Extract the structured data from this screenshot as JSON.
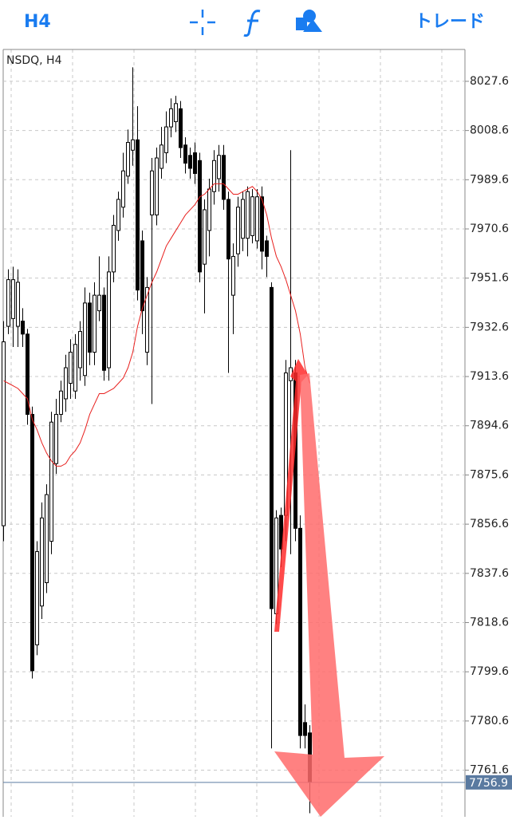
{
  "toolbar": {
    "timeframe": "H4",
    "trade": "トレード"
  },
  "chart_data": {
    "type": "candlestick",
    "title": "NSDQ, H4",
    "open": [
      7856,
      7933,
      7936,
      7933,
      7935,
      7930,
      7899,
      7810,
      7825,
      7834,
      7850,
      7880,
      7899,
      7905,
      7911,
      7908,
      7917,
      7914,
      7942,
      7923,
      7939,
      7945,
      7917,
      7954,
      7970,
      7979,
      7991,
      8001,
      8005,
      7966,
      7923,
      7976,
      7976,
      7994,
      8000,
      8010,
      8012,
      8017,
      8003,
      7999,
      8000,
      7997,
      7957,
      7970,
      7985,
      7990,
      7999,
      7982,
      7945,
      7961,
      7967,
      7967,
      7968,
      7966,
      7983,
      7966,
      7948,
      7822,
      7860,
      7860,
      7912,
      7915,
      7855,
      7780,
      7776
    ],
    "high": [
      7935,
      7955,
      7956,
      7955,
      7940,
      7932,
      7902,
      7850,
      7865,
      7872,
      7900,
      7905,
      7912,
      7922,
      7928,
      7930,
      7935,
      7948,
      7946,
      7950,
      7960,
      7948,
      7960,
      7976,
      7985,
      8000,
      8009,
      8033,
      8018,
      7970,
      7952,
      7998,
      8002,
      8010,
      8016,
      8021,
      8022,
      8020,
      8006,
      8002,
      8004,
      8000,
      7982,
      7990,
      8001,
      8003,
      8003,
      7985,
      7965,
      7983,
      7985,
      7987,
      7986,
      7986,
      7987,
      7968,
      7950,
      7862,
      7863,
      7920,
      8001,
      7920,
      7860,
      7787,
      7779
    ],
    "low": [
      7850,
      7930,
      7925,
      7925,
      7925,
      7895,
      7797,
      7806,
      7820,
      7830,
      7845,
      7876,
      7896,
      7900,
      7905,
      7905,
      7912,
      7910,
      7918,
      7918,
      7935,
      7912,
      7912,
      7950,
      7966,
      7975,
      7988,
      7995,
      7943,
      7930,
      7918,
      7903,
      7972,
      7990,
      7996,
      8006,
      8008,
      7998,
      7992,
      7990,
      7988,
      7950,
      7938,
      7960,
      7980,
      7985,
      7978,
      7915,
      7930,
      7956,
      7962,
      7960,
      7965,
      7963,
      7955,
      7952,
      7770,
      7818,
      7840,
      7850,
      7845,
      7850,
      7770,
      7770,
      7745
    ],
    "close": [
      7927,
      7951,
      7951,
      7950,
      7930,
      7899,
      7800,
      7846,
      7859,
      7868,
      7896,
      7899,
      7908,
      7917,
      7923,
      7926,
      7931,
      7942,
      7923,
      7945,
      7945,
      7916,
      7954,
      7972,
      7982,
      7993,
      8004,
      8005,
      7947,
      7939,
      7948,
      7993,
      7998,
      8003,
      8010,
      8017,
      8019,
      8002,
      7996,
      7994,
      7992,
      7954,
      7978,
      7986,
      7997,
      7999,
      7982,
      7959,
      7960,
      7979,
      7982,
      7985,
      7983,
      7983,
      7962,
      7960,
      7824,
      7859,
      7847,
      7915,
      7917,
      7855,
      7775,
      7775,
      7757
    ],
    "ma": [
      7912,
      7911,
      7910,
      7909,
      7907,
      7905,
      7897,
      7893,
      7888,
      7884,
      7881,
      7879,
      7879,
      7880,
      7883,
      7885,
      7888,
      7893,
      7899,
      7903,
      7907,
      7907,
      7908,
      7909,
      7911,
      7913,
      7917,
      7923,
      7933,
      7940,
      7945,
      7950,
      7954,
      7959,
      7964,
      7967,
      7970,
      7973,
      7976,
      7978,
      7980,
      7983,
      7984,
      7986,
      7988,
      7988,
      7988,
      7986,
      7984,
      7984,
      7985,
      7986,
      7987,
      7985,
      7982,
      7976,
      7967,
      7960,
      7956,
      7951,
      7945,
      7939,
      7930,
      7917,
      7911
    ],
    "ma_color": "#e8201e",
    "ylim": [
      7743.6,
      8039.9
    ],
    "yticks": [
      8027.6,
      8008.6,
      7989.6,
      7970.6,
      7951.6,
      7932.6,
      7913.6,
      7894.6,
      7875.6,
      7856.6,
      7837.6,
      7818.6,
      7799.6,
      7780.6,
      7761.6
    ],
    "grid": true,
    "last_price": 7756.9
  }
}
